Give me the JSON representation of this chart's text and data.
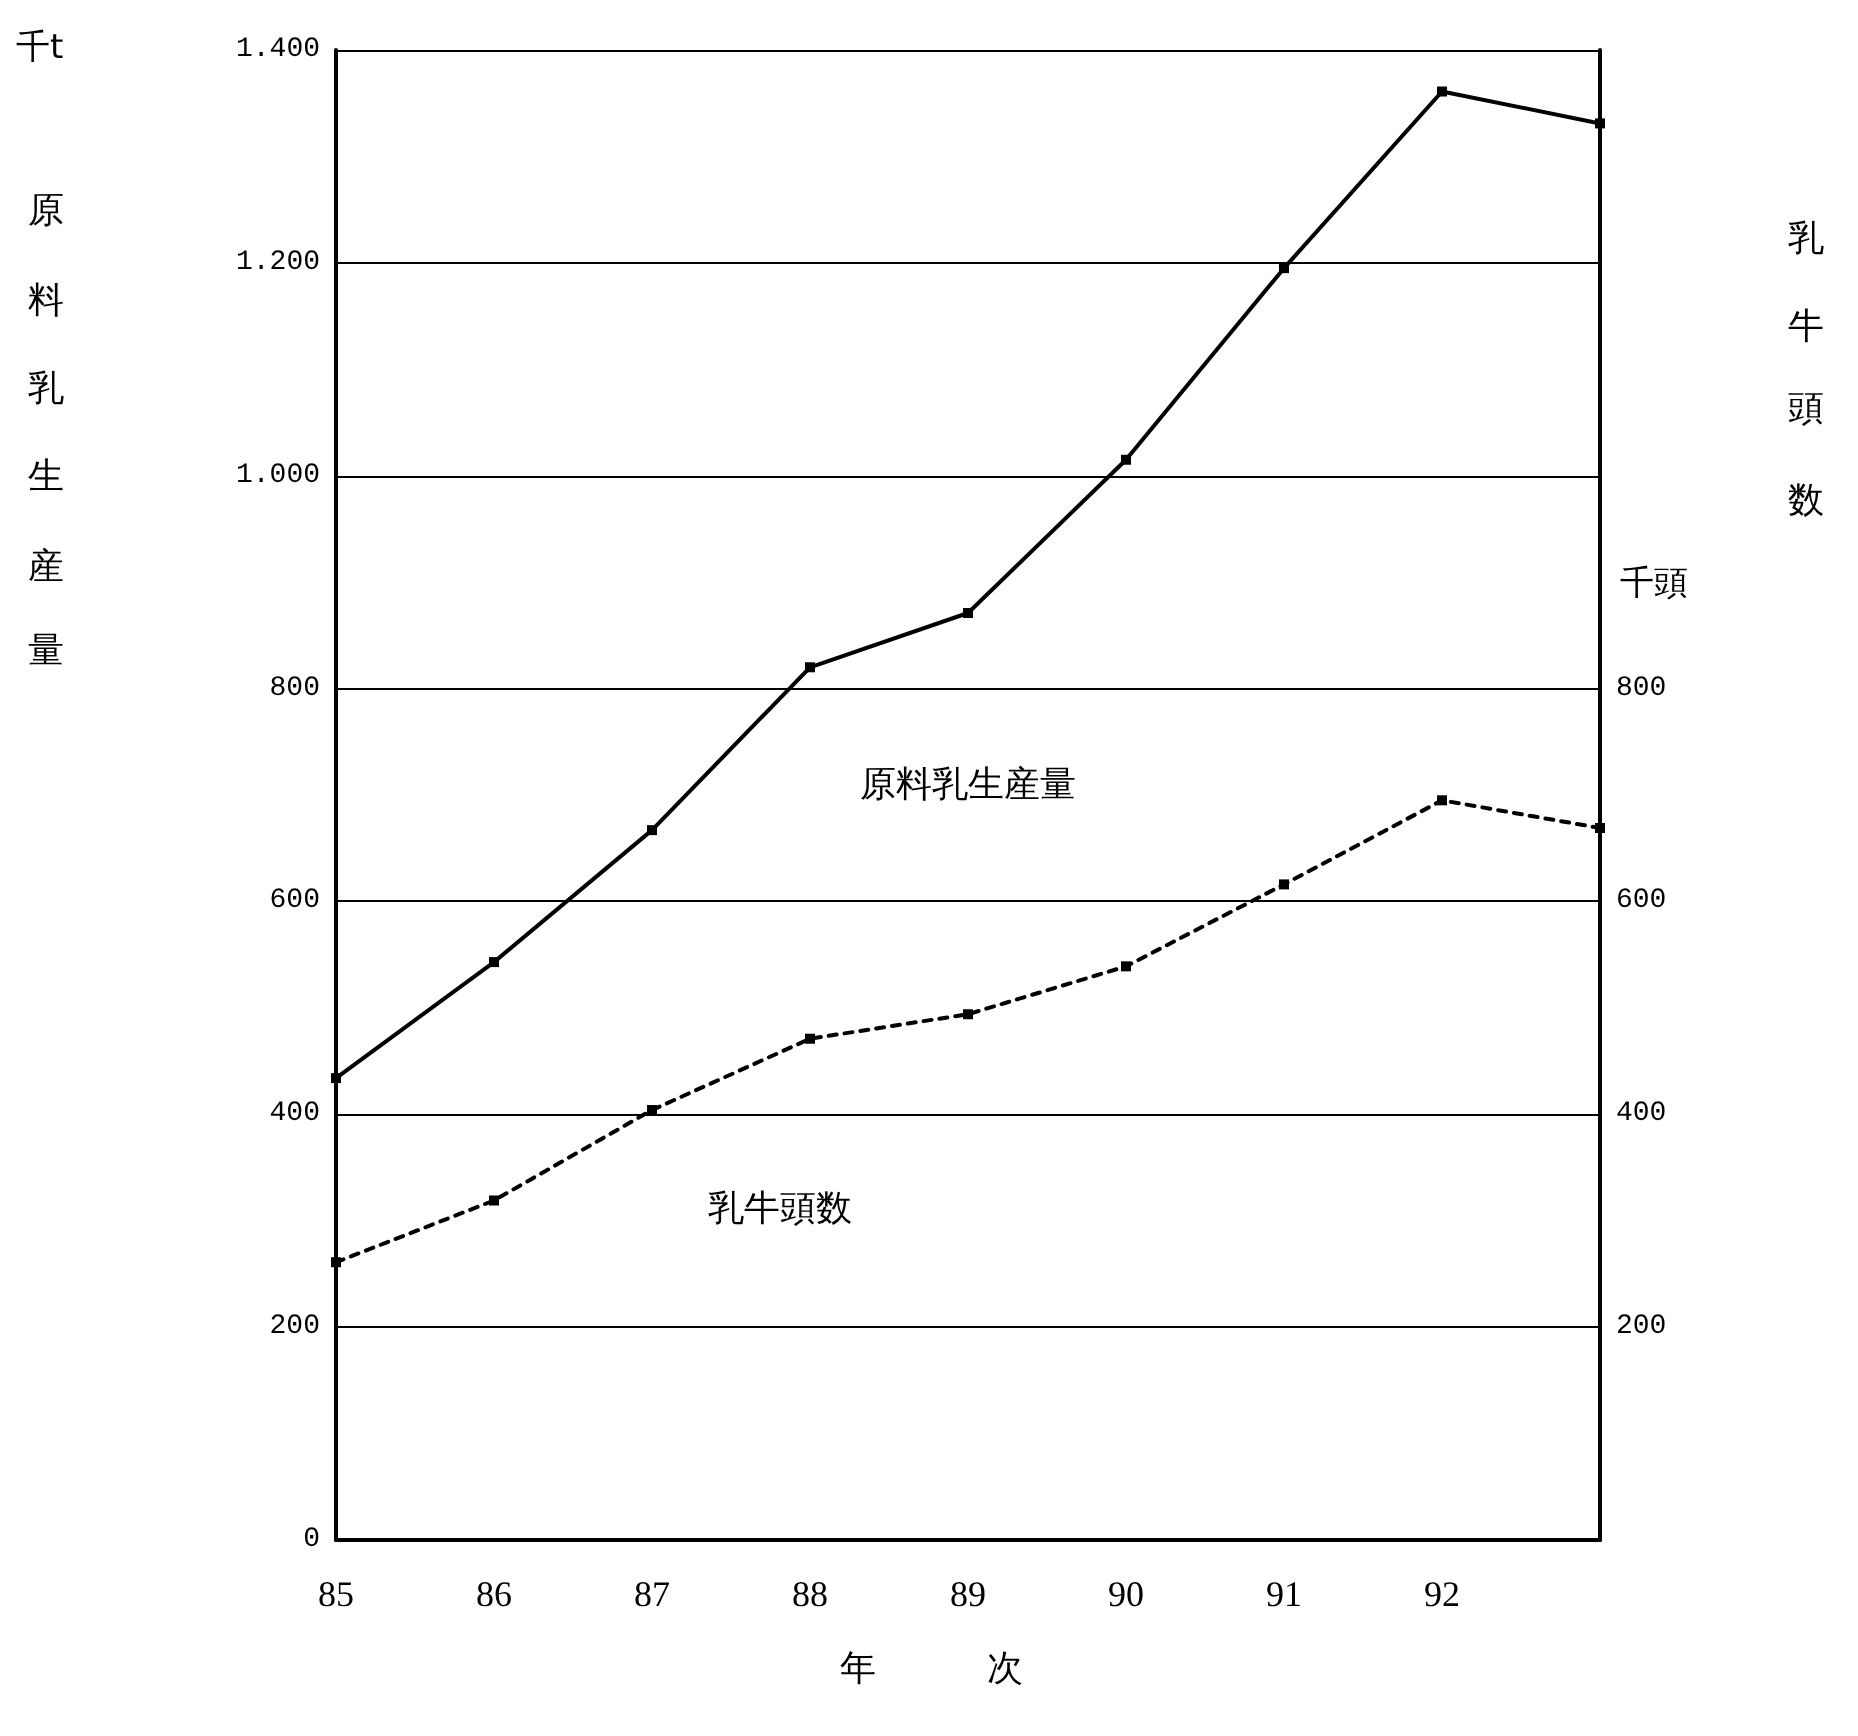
{
  "chart_data": {
    "type": "line",
    "categories": [
      "85",
      "86",
      "87",
      "88",
      "89",
      "90",
      "91",
      "92",
      null
    ],
    "series": [
      {
        "name": "原料乳生産量",
        "color": "#000000",
        "line_style": "solid",
        "values": [
          434,
          543,
          667,
          820,
          871,
          1015,
          1195,
          1361,
          1331
        ]
      },
      {
        "name": "乳牛頭数",
        "color": "#000000",
        "line_style": "dashed",
        "values": [
          261,
          319,
          404,
          471,
          494,
          539,
          616,
          695,
          669
        ]
      }
    ],
    "xlabel": "年 次",
    "ylabel": "原料乳生産量",
    "y2label": "乳牛頭数",
    "annotations": [
      "千t",
      "千頭"
    ],
    "ylim": [
      0,
      1400
    ],
    "yticks": [
      0,
      200,
      400,
      600,
      800,
      {
        "value": 1000,
        "label": "1.000"
      },
      {
        "value": 1200,
        "label": "1.200"
      },
      {
        "value": 1400,
        "label": "1.400"
      }
    ],
    "y2lim": [
      0,
      1400
    ],
    "y2ticks": [
      200,
      400,
      600,
      800
    ],
    "grid": "y",
    "marker": "square",
    "legend": false
  }
}
